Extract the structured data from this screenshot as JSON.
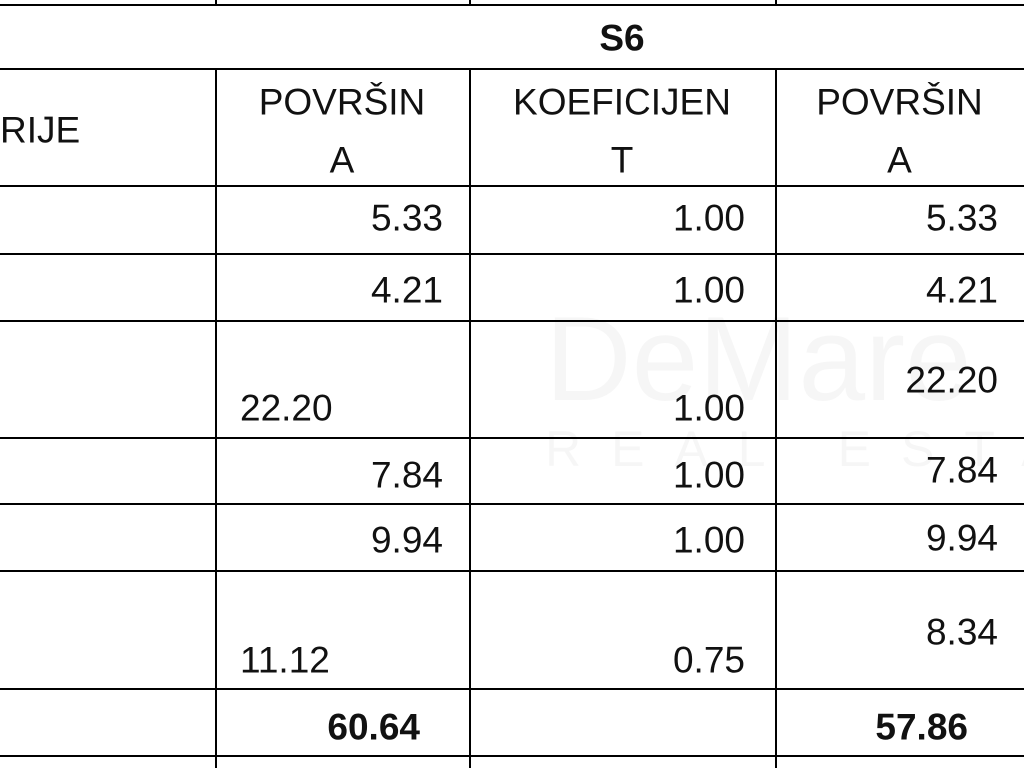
{
  "watermark": {
    "brand": "DeMare",
    "tagline": "REAL ESTATE"
  },
  "table": {
    "group_header": "S6",
    "headers": [
      "RIJE",
      [
        "POVRŠIN",
        "A"
      ],
      [
        "KOEFICIJEN",
        "T"
      ],
      [
        "POVRŠIN",
        "A"
      ]
    ],
    "rows": [
      [
        "5.33",
        "1.00",
        "5.33"
      ],
      [
        "4.21",
        "1.00",
        "4.21"
      ],
      [
        "22.20",
        "1.00",
        "22.20"
      ],
      [
        "7.84",
        "1.00",
        "7.84"
      ],
      [
        "9.94",
        "1.00",
        "9.94"
      ],
      [
        "11.12",
        "0.75",
        "8.34"
      ]
    ],
    "totals": [
      "60.64",
      "57.86"
    ]
  }
}
